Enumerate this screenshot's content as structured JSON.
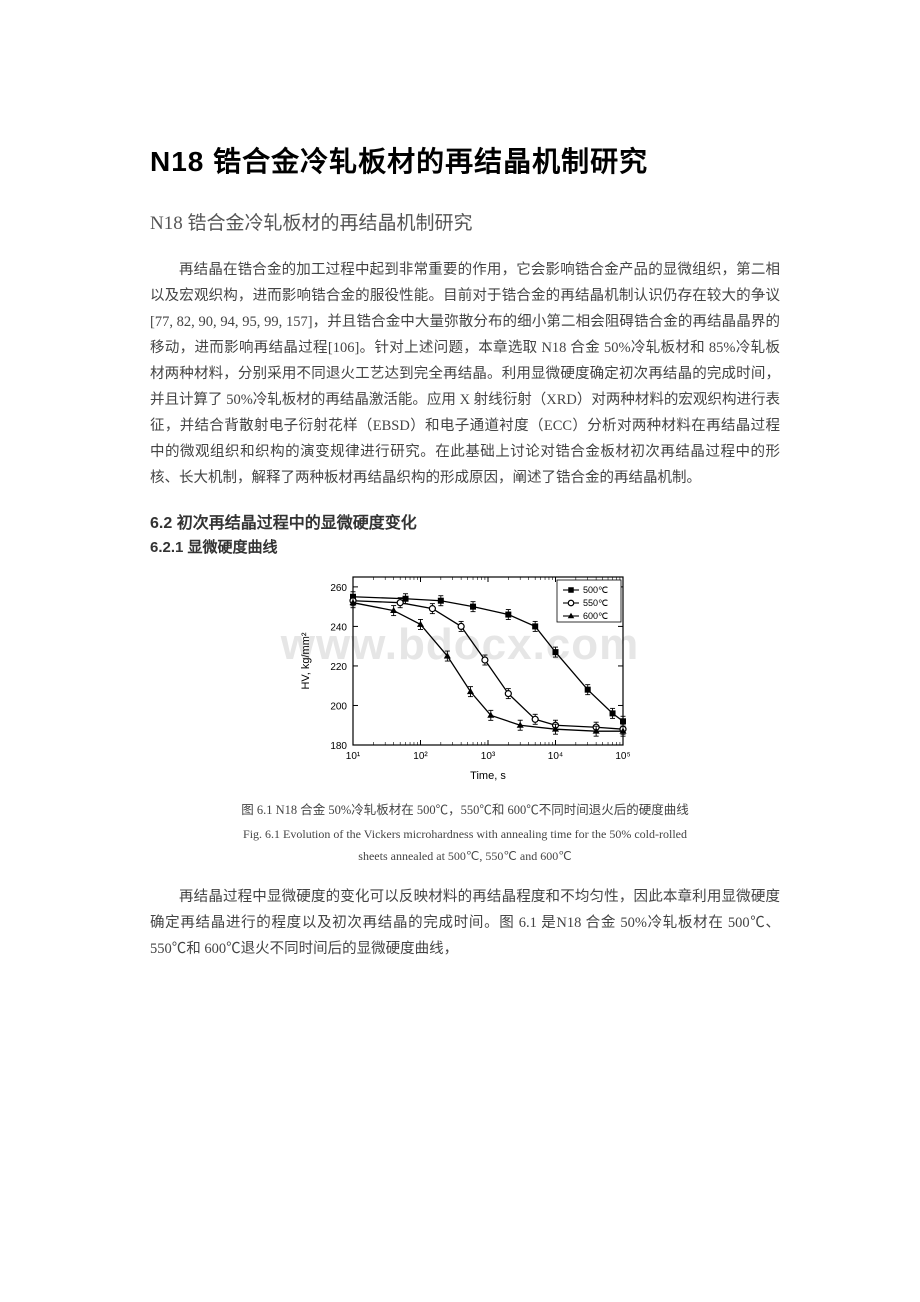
{
  "watermark": "www.bdocx.com",
  "main_title": "N18 锆合金冷轧板材的再结晶机制研究",
  "subtitle": "N18 锆合金冷轧板材的再结晶机制研究",
  "intro_paragraph": "再结晶在锆合金的加工过程中起到非常重要的作用，它会影响锆合金产品的显微组织，第二相以及宏观织构，进而影响锆合金的服役性能。目前对于锆合金的再结晶机制认识仍存在较大的争议[77, 82, 90, 94, 95, 99, 157]，并且锆合金中大量弥散分布的细小第二相会阻碍锆合金的再结晶晶界的移动，进而影响再结晶过程[106]。针对上述问题，本章选取 N18 合金 50%冷轧板材和 85%冷轧板材两种材料，分别采用不同退火工艺达到完全再结晶。利用显微硬度确定初次再结晶的完成时间，并且计算了 50%冷轧板材的再结晶激活能。应用 X 射线衍射（XRD）对两种材料的宏观织构进行表征，并结合背散射电子衍射花样（EBSD）和电子通道衬度（ECC）分析对两种材料在再结晶过程中的微观组织和织构的演变规律进行研究。在此基础上讨论对锆合金板材初次再结晶过程中的形核、长大机制，解释了两种板材再结晶织构的形成原因，阐述了锆合金的再结晶机制。",
  "section_6_2": "6.2  初次再结晶过程中的显微硬度变化",
  "section_6_2_1": "6.2.1  显微硬度曲线",
  "chart": {
    "type": "line",
    "xlabel": "Time, s",
    "ylabel": "HV, kg/mm²",
    "x_scale": "log",
    "xlim": [
      10,
      100000
    ],
    "ylim": [
      180,
      265
    ],
    "xticks": [
      10,
      100,
      1000,
      10000,
      100000
    ],
    "xtick_labels": [
      "10¹",
      "10²",
      "10³",
      "10⁴",
      "10⁵"
    ],
    "yticks": [
      180,
      200,
      220,
      240,
      260
    ],
    "series": [
      {
        "label": "500℃",
        "marker": "square-filled",
        "color": "#000000",
        "data": [
          {
            "x": 10,
            "y": 255
          },
          {
            "x": 60,
            "y": 254
          },
          {
            "x": 200,
            "y": 253
          },
          {
            "x": 600,
            "y": 250
          },
          {
            "x": 2000,
            "y": 246
          },
          {
            "x": 5000,
            "y": 240
          },
          {
            "x": 10000,
            "y": 227
          },
          {
            "x": 30000,
            "y": 208
          },
          {
            "x": 70000,
            "y": 196
          },
          {
            "x": 100000,
            "y": 192
          }
        ]
      },
      {
        "label": "550℃",
        "marker": "circle-open",
        "color": "#000000",
        "data": [
          {
            "x": 10,
            "y": 253
          },
          {
            "x": 50,
            "y": 252
          },
          {
            "x": 150,
            "y": 249
          },
          {
            "x": 400,
            "y": 240
          },
          {
            "x": 900,
            "y": 223
          },
          {
            "x": 2000,
            "y": 206
          },
          {
            "x": 5000,
            "y": 193
          },
          {
            "x": 10000,
            "y": 190
          },
          {
            "x": 40000,
            "y": 189
          },
          {
            "x": 100000,
            "y": 188
          }
        ]
      },
      {
        "label": "600℃",
        "marker": "triangle-filled",
        "color": "#000000",
        "data": [
          {
            "x": 10,
            "y": 252
          },
          {
            "x": 40,
            "y": 248
          },
          {
            "x": 100,
            "y": 241
          },
          {
            "x": 250,
            "y": 225
          },
          {
            "x": 550,
            "y": 207
          },
          {
            "x": 1100,
            "y": 195
          },
          {
            "x": 3000,
            "y": 190
          },
          {
            "x": 10000,
            "y": 188
          },
          {
            "x": 40000,
            "y": 187
          },
          {
            "x": 100000,
            "y": 187
          }
        ]
      }
    ],
    "legend_position": "top-right",
    "background_color": "#ffffff",
    "axis_color": "#000000",
    "font_size_label": 11,
    "font_size_tick": 10,
    "font_size_legend": 9,
    "error_bar_size": 5
  },
  "figure_caption_cn": "图 6.1 N18 合金 50%冷轧板材在 500℃，550℃和 600℃不同时间退火后的硬度曲线",
  "figure_caption_en_1": "Fig. 6.1 Evolution of the Vickers microhardness with annealing time for the 50% cold-rolled",
  "figure_caption_en_2": "sheets annealed at 500℃, 550℃ and 600℃",
  "post_paragraph": "再结晶过程中显微硬度的变化可以反映材料的再结晶程度和不均匀性，因此本章利用显微硬度确定再结晶进行的程度以及初次再结晶的完成时间。图 6.1 是N18 合金 50%冷轧板材在 500℃、550℃和 600℃退火不同时间后的显微硬度曲线，"
}
